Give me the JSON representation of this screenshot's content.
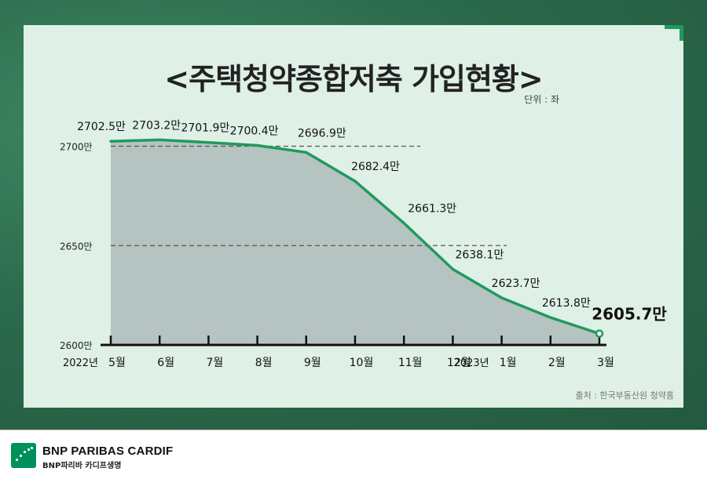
{
  "title": "<주택청약종합저축 가입현황>",
  "unit_label": "단위 : 좌",
  "source_label": "출처 : 한국부동산원 청약홈",
  "footer": {
    "brand": "BNP PARIBAS CARDIF",
    "brand_sub": "BNP파리바 카디프생명"
  },
  "colors": {
    "line": "#1f9a5d",
    "area": "#b5c4c1",
    "panel": "#dff0e6",
    "axis": "#111111"
  },
  "chart_data": {
    "type": "area",
    "title": "<주택청약종합저축 가입현황>",
    "unit": "단위 : 좌",
    "categories": [
      "5월",
      "6월",
      "7월",
      "8월",
      "9월",
      "10월",
      "11월",
      "12월",
      "1월",
      "2월",
      "3월"
    ],
    "year_labels": [
      {
        "index": 0,
        "label": "2022년"
      },
      {
        "index": 8,
        "label": "2023년"
      }
    ],
    "values": [
      2702.5,
      2703.2,
      2701.9,
      2700.4,
      2696.9,
      2682.4,
      2661.3,
      2638.1,
      2623.7,
      2613.8,
      2605.7
    ],
    "value_labels": [
      "2702.5만",
      "2703.2만",
      "2701.9만",
      "2700.4만",
      "2696.9만",
      "2682.4만",
      "2661.3만",
      "2638.1만",
      "2623.7만",
      "2613.8만",
      "2605.7만"
    ],
    "y_ticks": [
      {
        "value": 2700,
        "label": "2700만"
      },
      {
        "value": 2650,
        "label": "2650만"
      },
      {
        "value": 2600,
        "label": "2600만"
      }
    ],
    "ylim": [
      2600,
      2705
    ],
    "grid": "dashed at 2700 and 2650",
    "legend": "none"
  }
}
